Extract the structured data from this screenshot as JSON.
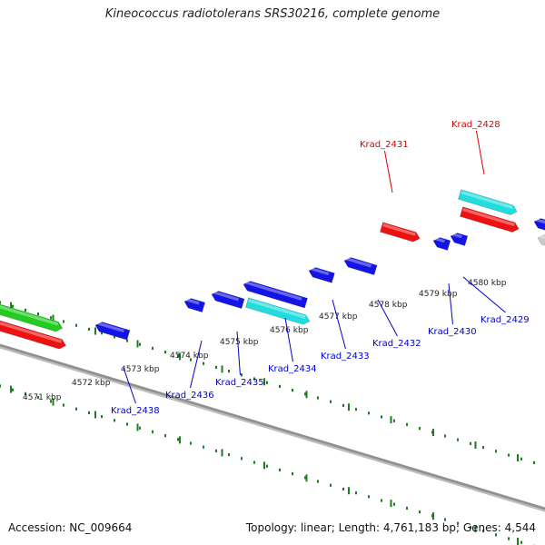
{
  "title": "Kineococcus radiotolerans SRS30216, complete genome",
  "accession": "Accession: NC_009664",
  "topology": "Topology: linear; Length: 4,761,183 bp; Genes: 4,544",
  "colors": {
    "backbone": "#8f8f8f",
    "tick": "#1b7d1b",
    "red": "#ee1111",
    "blue": "#1414e6",
    "cyan": "#22dddd",
    "green": "#22cc22",
    "gray": "#c8c8c8",
    "blue_label": "#0000cc",
    "red_label": "#dd0000"
  },
  "scale_labels": [
    "4571 kbp",
    "4572 kbp",
    "4573 kbp",
    "4574 kbp",
    "4575 kbp",
    "4576 kbp",
    "4577 kbp",
    "4578 kbp",
    "4579 kbp",
    "4580 kbp"
  ],
  "gene_labels": [
    "Krad_2438",
    "Krad_2436",
    "Krad_2435",
    "Krad_2434",
    "Krad_2433",
    "Krad_2432",
    "Krad_2430",
    "Krad_2429",
    "Krad_2431",
    "Krad_2428"
  ]
}
